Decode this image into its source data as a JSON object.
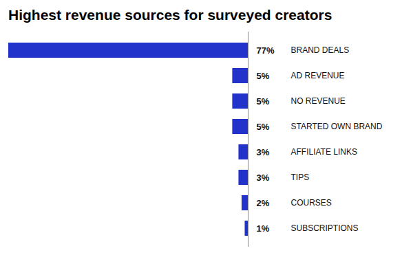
{
  "chart_data": {
    "type": "bar",
    "orientation": "horizontal",
    "title": "Highest revenue sources for surveyed creators",
    "categories": [
      "BRAND DEALS",
      "AD REVENUE",
      "NO REVENUE",
      "STARTED OWN BRAND",
      "AFFILIATE LINKS",
      "TIPS",
      "COURSES",
      "SUBSCRIPTIONS"
    ],
    "values": [
      77,
      5,
      5,
      5,
      3,
      3,
      2,
      1
    ],
    "value_labels": [
      "77%",
      "5%",
      "5%",
      "5%",
      "3%",
      "3%",
      "2%",
      "1%"
    ],
    "color": "#2233cc",
    "xlim": [
      77,
      0
    ],
    "data_labels": true,
    "tick_labels": "y",
    "grid": false
  }
}
